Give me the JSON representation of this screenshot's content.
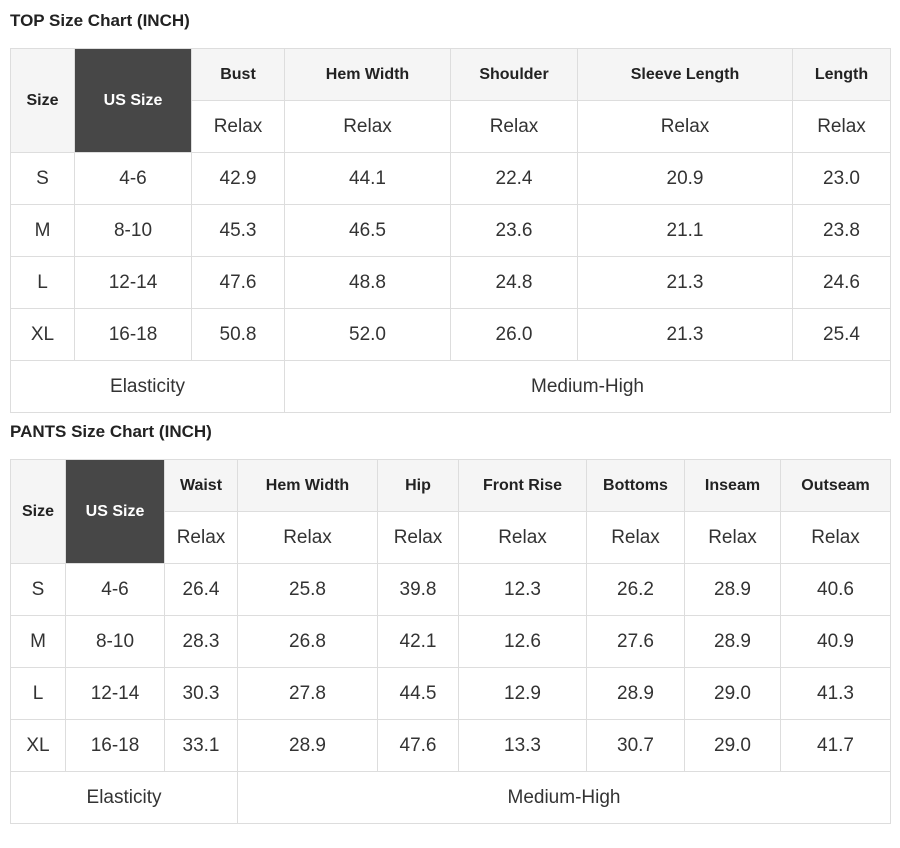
{
  "colors": {
    "header_bg": "#f5f5f5",
    "us_size_bg": "#474747",
    "us_size_text": "#ffffff",
    "border": "#dddddd",
    "body_text": "#333333",
    "heading_text": "#222222"
  },
  "top_chart": {
    "title": "TOP Size Chart (INCH)",
    "corner": {
      "size_label": "Size",
      "us_size_label": "US Size"
    },
    "fit_label": "Relax",
    "columns": [
      "Bust",
      "Hem Width",
      "Shoulder",
      "Sleeve Length",
      "Length"
    ],
    "rows": [
      {
        "size": "S",
        "us_size": "4-6",
        "values": [
          "42.9",
          "44.1",
          "22.4",
          "20.9",
          "23.0"
        ]
      },
      {
        "size": "M",
        "us_size": "8-10",
        "values": [
          "45.3",
          "46.5",
          "23.6",
          "21.1",
          "23.8"
        ]
      },
      {
        "size": "L",
        "us_size": "12-14",
        "values": [
          "47.6",
          "48.8",
          "24.8",
          "21.3",
          "24.6"
        ]
      },
      {
        "size": "XL",
        "us_size": "16-18",
        "values": [
          "50.8",
          "52.0",
          "26.0",
          "21.3",
          "25.4"
        ]
      }
    ],
    "footer": {
      "label": "Elasticity",
      "value": "Medium-High"
    }
  },
  "pants_chart": {
    "title": "PANTS Size Chart (INCH)",
    "corner": {
      "size_label": "Size",
      "us_size_label": "US Size"
    },
    "fit_label": "Relax",
    "columns": [
      "Waist",
      "Hem Width",
      "Hip",
      "Front Rise",
      "Bottoms",
      "Inseam",
      "Outseam"
    ],
    "rows": [
      {
        "size": "S",
        "us_size": "4-6",
        "values": [
          "26.4",
          "25.8",
          "39.8",
          "12.3",
          "26.2",
          "28.9",
          "40.6"
        ]
      },
      {
        "size": "M",
        "us_size": "8-10",
        "values": [
          "28.3",
          "26.8",
          "42.1",
          "12.6",
          "27.6",
          "28.9",
          "40.9"
        ]
      },
      {
        "size": "L",
        "us_size": "12-14",
        "values": [
          "30.3",
          "27.8",
          "44.5",
          "12.9",
          "28.9",
          "29.0",
          "41.3"
        ]
      },
      {
        "size": "XL",
        "us_size": "16-18",
        "values": [
          "33.1",
          "28.9",
          "47.6",
          "13.3",
          "30.7",
          "29.0",
          "41.7"
        ]
      }
    ],
    "footer": {
      "label": "Elasticity",
      "value": "Medium-High"
    }
  }
}
